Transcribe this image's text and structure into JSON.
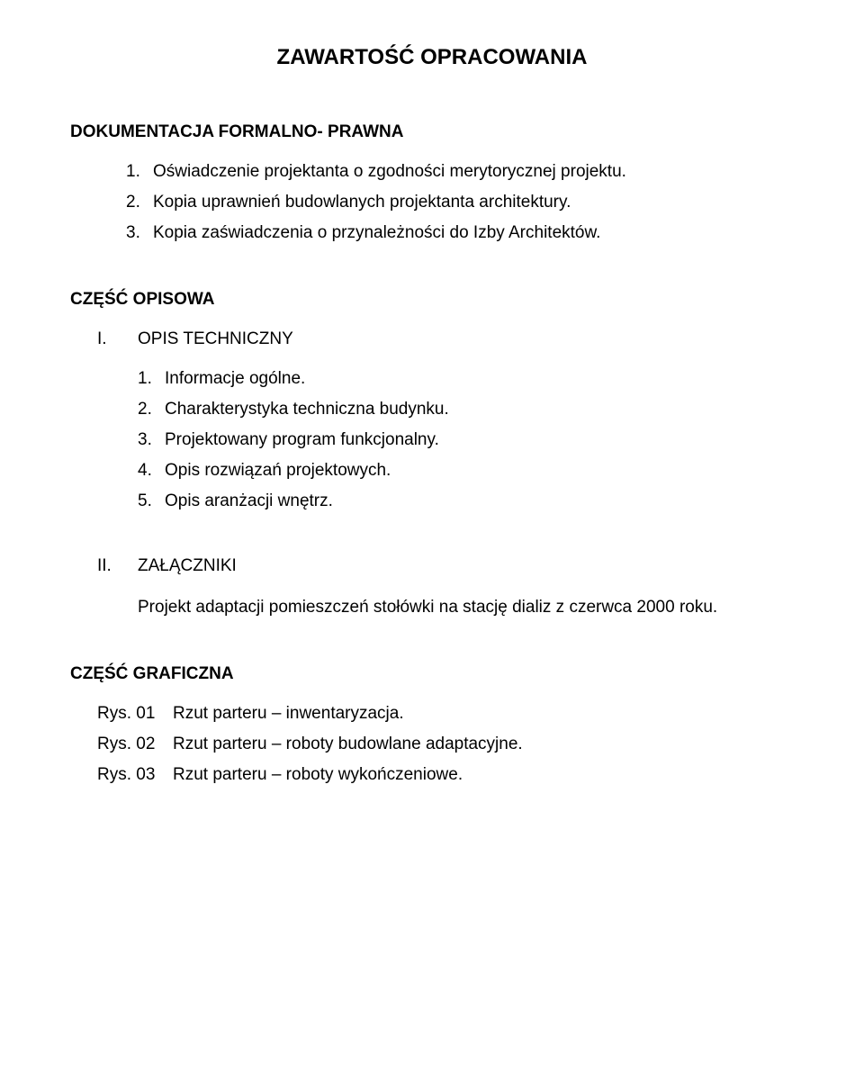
{
  "title": "ZAWARTOŚĆ OPRACOWANIA",
  "section1": {
    "heading": "DOKUMENTACJA FORMALNO- PRAWNA",
    "items": [
      {
        "num": "1.",
        "text": "Oświadczenie projektanta o zgodności merytorycznej projektu."
      },
      {
        "num": "2.",
        "text": "Kopia uprawnień budowlanych projektanta architektury."
      },
      {
        "num": "3.",
        "text": "Kopia zaświadczenia o przynależności do Izby Architektów."
      }
    ]
  },
  "section2": {
    "heading": "CZĘŚĆ OPISOWA",
    "roman1": {
      "num": "I.",
      "label": "OPIS TECHNICZNY",
      "items": [
        {
          "num": "1.",
          "text": "Informacje ogólne."
        },
        {
          "num": "2.",
          "text": "Charakterystyka techniczna budynku."
        },
        {
          "num": "3.",
          "text": "Projektowany program funkcjonalny."
        },
        {
          "num": "4.",
          "text": "Opis rozwiązań projektowych."
        },
        {
          "num": "5.",
          "text": "Opis aranżacji wnętrz."
        }
      ]
    },
    "roman2": {
      "num": "II.",
      "label": "ZAŁĄCZNIKI",
      "text": "Projekt adaptacji pomieszczeń stołówki na stację dializ z czerwca 2000 roku."
    }
  },
  "section3": {
    "heading": "CZĘŚĆ GRAFICZNA",
    "items": [
      {
        "label": "Rys. 01",
        "text": "Rzut parteru – inwentaryzacja."
      },
      {
        "label": "Rys. 02",
        "text": "Rzut parteru – roboty budowlane adaptacyjne."
      },
      {
        "label": "Rys. 03",
        "text": "Rzut parteru – roboty wykończeniowe."
      }
    ]
  },
  "colors": {
    "background": "#ffffff",
    "text": "#000000"
  },
  "typography": {
    "title_fontsize": 24,
    "heading_fontsize": 19,
    "body_fontsize": 19,
    "font_family": "Arial"
  }
}
